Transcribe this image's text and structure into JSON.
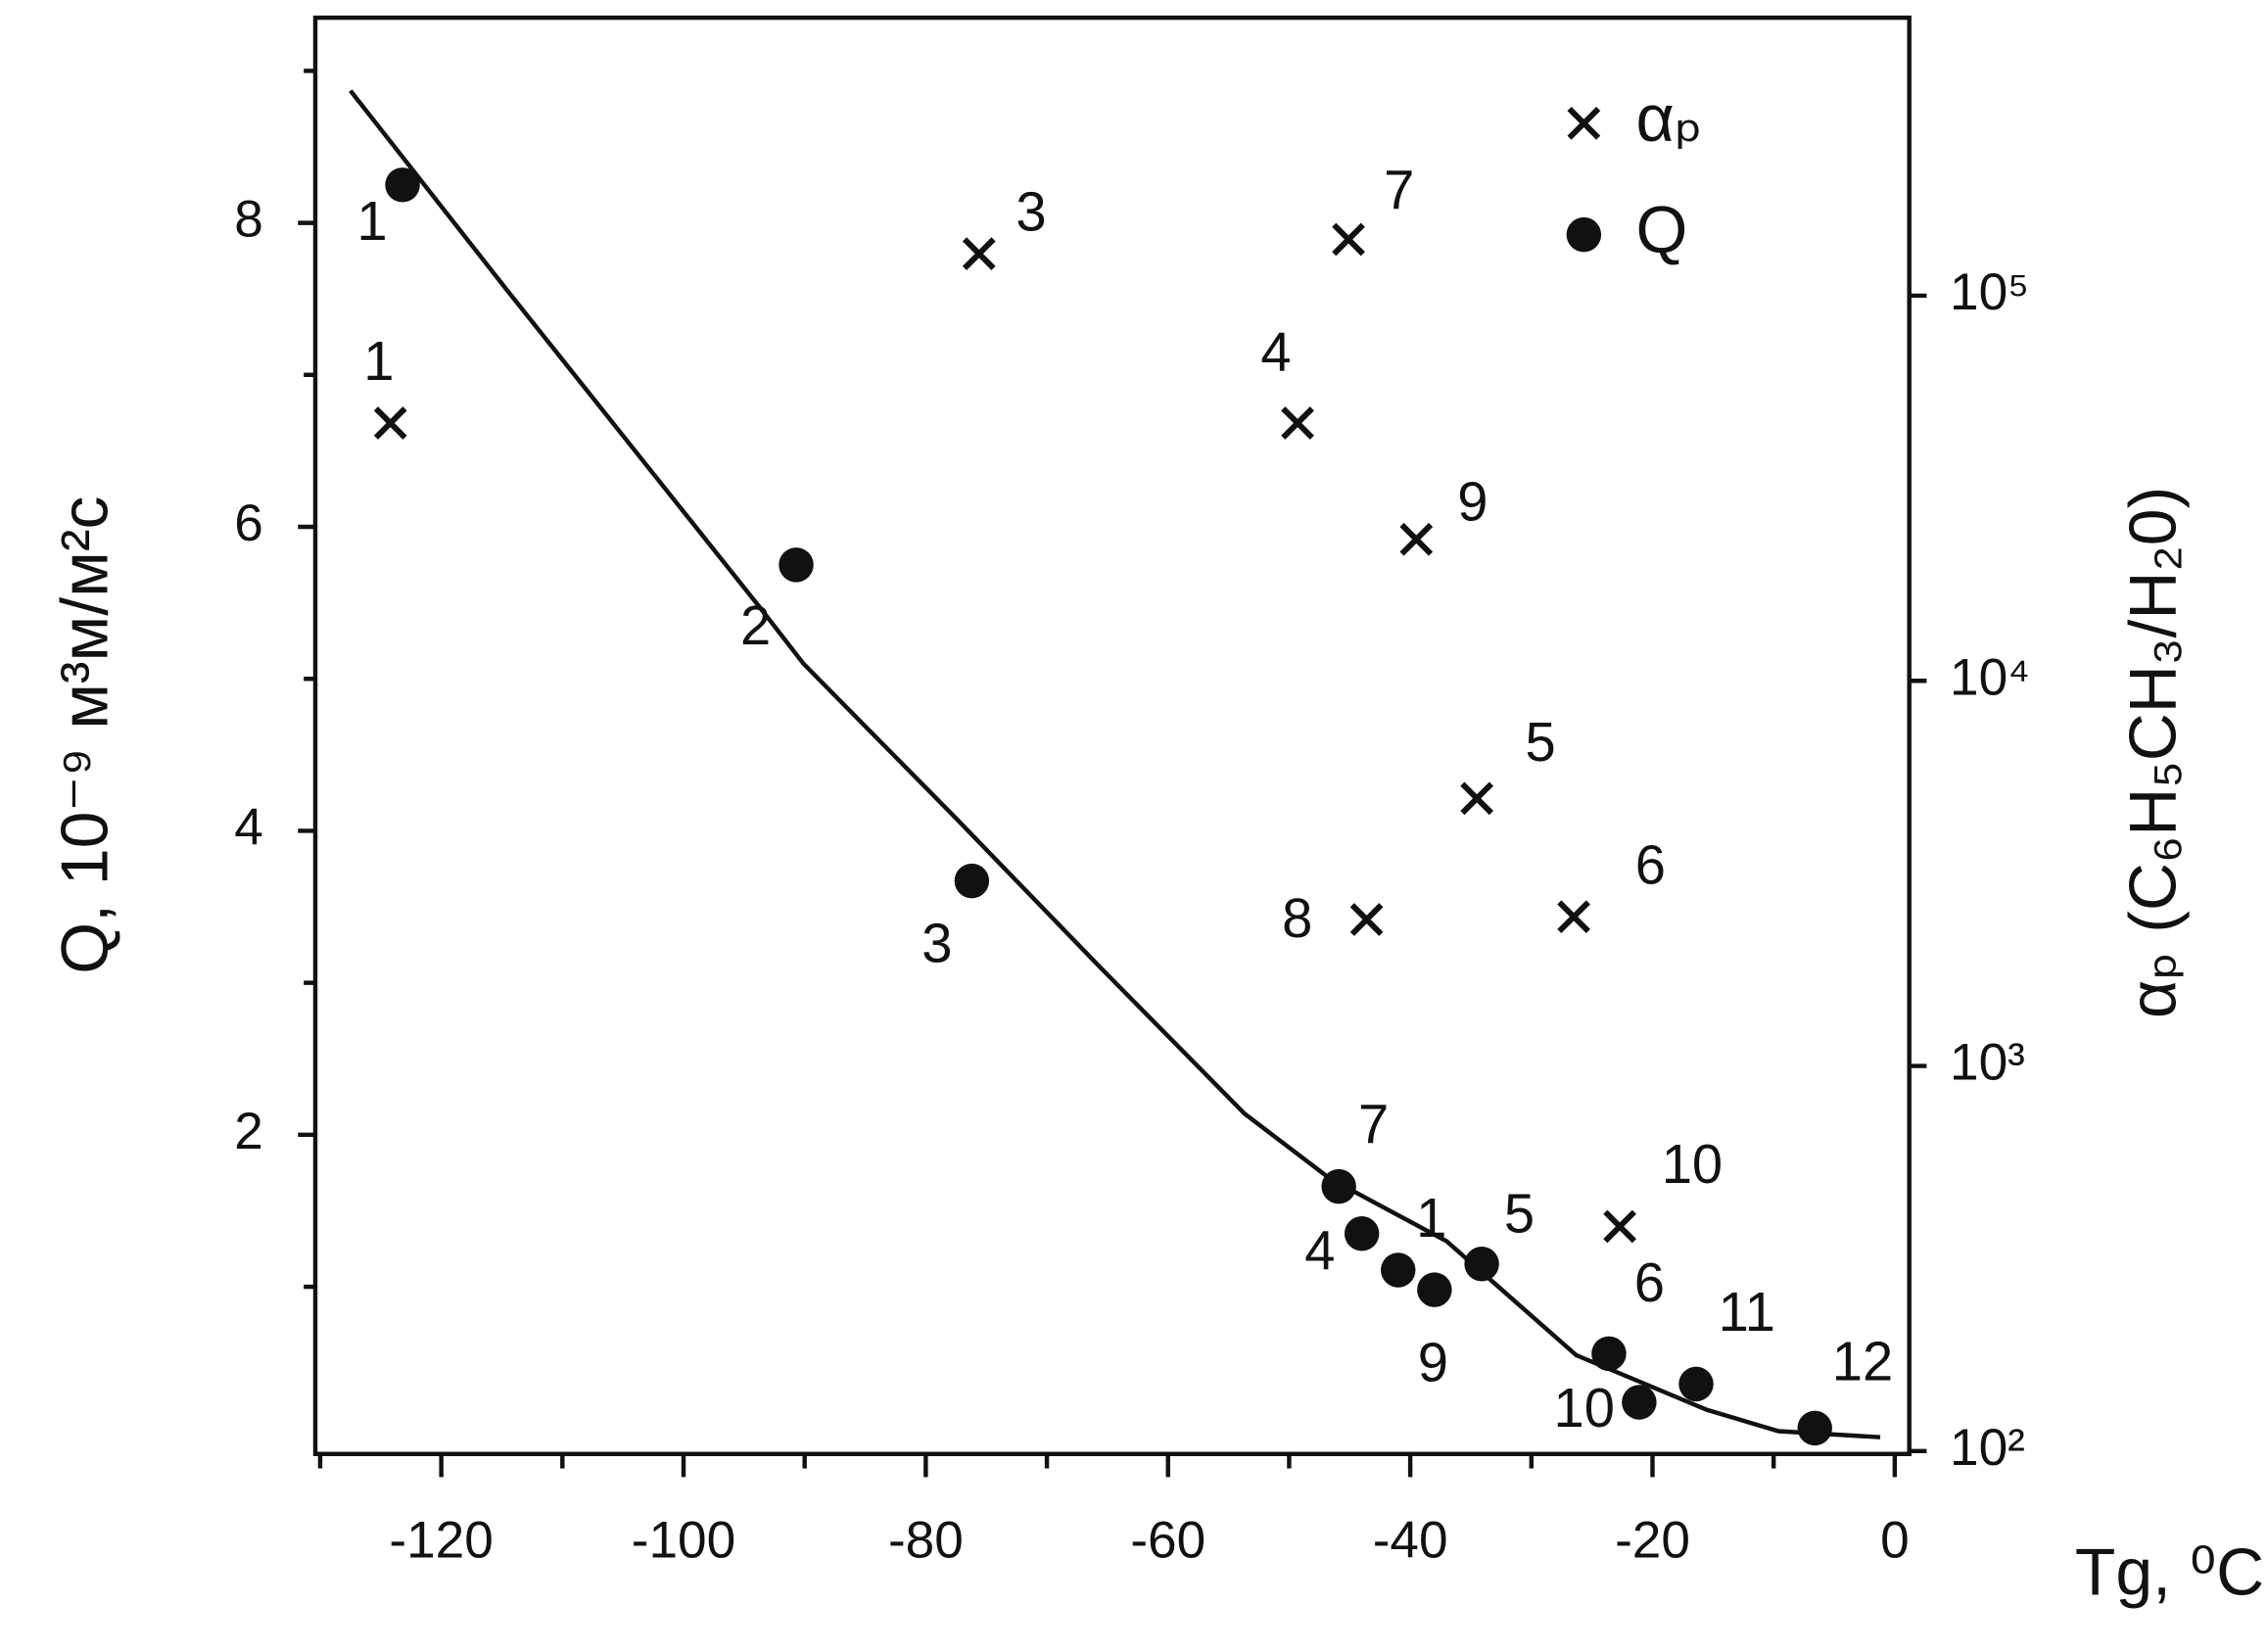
{
  "chart_data": {
    "type": "scatter",
    "xlabel": "Tg, ⁰C",
    "ylabel": "Q, 10⁻⁹ м³м/м²с",
    "y2label": "αₚ (C₆H₅CH₃/H₂0)",
    "xlim": [
      -130.4,
      1.2
    ],
    "xticks": [
      -120,
      -100,
      -80,
      -60,
      -40,
      -20,
      0
    ],
    "xminorticks": [
      -130,
      -110,
      -90,
      -70,
      -50,
      -30,
      -10
    ],
    "ylim": [
      -0.1,
      9.35
    ],
    "yticks": [
      2,
      4,
      6,
      8
    ],
    "yminorticks": [
      1,
      3,
      5,
      7,
      9
    ],
    "y2lim": [
      98.3,
      527000
    ],
    "y2log": true,
    "y2ticks": [
      {
        "value": 100,
        "label": "10²"
      },
      {
        "value": 1000,
        "label": "10³"
      },
      {
        "value": 10000,
        "label": "10⁴"
      },
      {
        "value": 100000,
        "label": "10⁵"
      }
    ],
    "legend": "upper right",
    "series": [
      {
        "name": "αₚ",
        "marker": "cross",
        "color": "#111111",
        "axis": "y2",
        "x": [
          -124.2,
          -75.6,
          -45.1,
          -49.3,
          -39.5,
          -34.5,
          -43.6,
          -26.5,
          -22.7
        ],
        "values": [
          46700,
          128500,
          140000,
          46700,
          23300,
          4950,
          2400,
          2440,
          383
        ],
        "point_labels": [
          "1",
          "3",
          "7",
          "4",
          "9",
          "5",
          "8",
          "6",
          "10"
        ]
      },
      {
        "name": "Q",
        "marker": "circle",
        "color": "#111111",
        "x": [
          -123.2,
          -90.7,
          -76.2,
          -45.9,
          -44.0,
          -41.0,
          -38.0,
          -34.1,
          -23.6,
          -21.1,
          -16.4,
          -6.6
        ],
        "values": [
          8.25,
          5.75,
          3.67,
          1.66,
          1.35,
          1.11,
          0.98,
          1.15,
          0.56,
          0.24,
          0.36,
          0.07
        ],
        "point_labels": [
          "1",
          "2",
          "3",
          "7",
          "4",
          "1",
          "9",
          "5",
          "6",
          "10",
          "11",
          "12"
        ]
      }
    ],
    "fit_line": {
      "color": "#111111",
      "x": [
        -127.5,
        -114.6,
        -105.1,
        -93.7,
        -90.1,
        -77.6,
        -65.7,
        -53.7,
        -46.6,
        -37.0,
        -26.3,
        -15.5,
        -9.6,
        -1.2
      ],
      "values": [
        8.87,
        7.56,
        6.61,
        5.47,
        5.1,
        4.09,
        3.11,
        2.14,
        1.71,
        1.3,
        0.55,
        0.19,
        0.05,
        0.01
      ]
    }
  }
}
